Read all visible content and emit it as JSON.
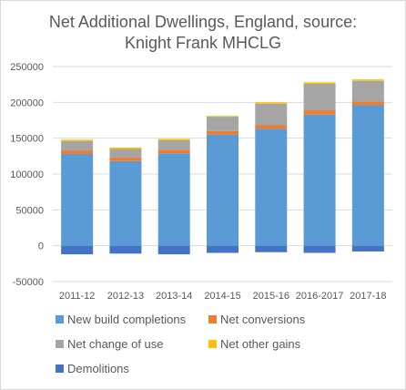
{
  "chart_data": {
    "type": "bar",
    "stacked": true,
    "title_lines": [
      "Net Additional Dwellings, England, source:",
      "Knight Frank MHCLG"
    ],
    "xlabel": "",
    "ylabel": "",
    "ylim": [
      -50000,
      250000
    ],
    "yticks": [
      -50000,
      0,
      50000,
      100000,
      150000,
      200000,
      250000
    ],
    "ytick_labels": [
      "-50000",
      "0",
      "50000",
      "100000",
      "150000",
      "200000",
      "250000"
    ],
    "grid": true,
    "legend_position": "bottom",
    "categories": [
      "2011-12",
      "2012-13",
      "2013-14",
      "2014-15",
      "2015-16",
      "2016-2017",
      "2017-18"
    ],
    "series": [
      {
        "name": "New build completions",
        "color": "#5b9bd5",
        "values": [
          128000,
          118000,
          129000,
          155000,
          163000,
          183000,
          196000
        ]
      },
      {
        "name": "Net conversions",
        "color": "#ed7d31",
        "values": [
          5000,
          5000,
          5000,
          5000,
          5000,
          6000,
          5000
        ]
      },
      {
        "name": "Net change of use",
        "color": "#a5a5a5",
        "values": [
          13000,
          12000,
          13000,
          20000,
          30000,
          37000,
          29000
        ]
      },
      {
        "name": "Net other gains",
        "color": "#ffc000",
        "values": [
          2000,
          2000,
          2000,
          1000,
          2000,
          2000,
          2000
        ]
      },
      {
        "name": "Demolitions",
        "color": "#4472c4",
        "values": [
          -12000,
          -11000,
          -12000,
          -10000,
          -9000,
          -10000,
          -8000
        ]
      }
    ]
  }
}
